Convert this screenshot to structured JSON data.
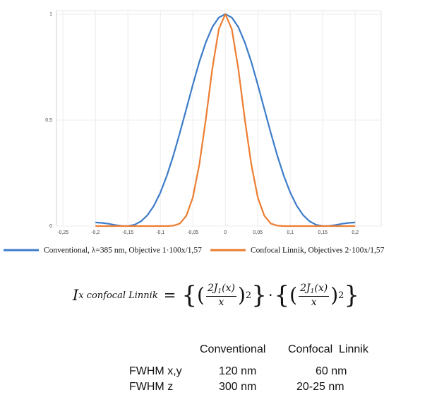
{
  "chart_data": {
    "type": "line",
    "x": [
      -0.2,
      -0.19,
      -0.18,
      -0.17,
      -0.16,
      -0.15,
      -0.14,
      -0.13,
      -0.12,
      -0.11,
      -0.1,
      -0.09,
      -0.08,
      -0.07,
      -0.06,
      -0.05,
      -0.04,
      -0.03,
      -0.02,
      -0.01,
      0,
      0.01,
      0.02,
      0.03,
      0.04,
      0.05,
      0.06,
      0.07,
      0.08,
      0.09,
      0.1,
      0.11,
      0.12,
      0.13,
      0.14,
      0.15,
      0.16,
      0.17,
      0.18,
      0.19,
      0.2
    ],
    "series": [
      {
        "name": "Conventional, λ=385 nm, Objective 1·100x/1,57",
        "color": "#3d7cc9",
        "values": [
          0.017,
          0.015,
          0.011,
          0.005,
          0.001,
          0,
          0.006,
          0.022,
          0.051,
          0.096,
          0.158,
          0.238,
          0.333,
          0.44,
          0.553,
          0.667,
          0.775,
          0.867,
          0.939,
          0.984,
          1,
          0.984,
          0.939,
          0.867,
          0.775,
          0.667,
          0.553,
          0.44,
          0.333,
          0.238,
          0.158,
          0.096,
          0.051,
          0.022,
          0.006,
          0,
          0.001,
          0.005,
          0.011,
          0.015,
          0.017
        ]
      },
      {
        "name": "Confocal Linnik, Objectives 2·100x/1,57",
        "color": "#ed7d31",
        "values": [
          0,
          0,
          0,
          0,
          0,
          0,
          0,
          0,
          0,
          0,
          0,
          0,
          0.002,
          0.012,
          0.049,
          0.135,
          0.291,
          0.504,
          0.743,
          0.929,
          1,
          0.929,
          0.743,
          0.504,
          0.291,
          0.135,
          0.049,
          0.012,
          0.002,
          0,
          0,
          0,
          0,
          0,
          0,
          0,
          0,
          0,
          0,
          0,
          0
        ]
      }
    ],
    "xlim": [
      -0.26,
      0.24
    ],
    "ylim": [
      0,
      1
    ],
    "xticks": [
      {
        "value": -0.25,
        "label": "-0,25"
      },
      {
        "value": -0.2,
        "label": "-0,2"
      },
      {
        "value": -0.15,
        "label": "-0,15"
      },
      {
        "value": -0.1,
        "label": "-0,1"
      },
      {
        "value": -0.05,
        "label": "-0,05"
      },
      0,
      {
        "value": 0.05,
        "label": "0,05"
      },
      {
        "value": 0.1,
        "label": "0,1"
      },
      {
        "value": 0.15,
        "label": "0,15"
      },
      {
        "value": 0.2,
        "label": "0,2"
      }
    ],
    "yticks": [
      0,
      {
        "value": 0.5,
        "label": "0,5"
      },
      1
    ],
    "grid": true,
    "legend": "bottom"
  },
  "formula": {
    "lhs": "I",
    "lhs_sub": "x confocal Linnik",
    "equals": "=",
    "open_brace": "{",
    "close_brace": "}",
    "open_paren": "(",
    "close_paren": ")",
    "numerator": "2J",
    "numerator_sub": "1",
    "numerator_arg": "(x)",
    "denominator": "x",
    "exponent": "2",
    "dot": "·"
  },
  "table": {
    "columns": [
      "Conventional",
      "Confocal  Linnik"
    ],
    "rows": [
      [
        "FWHM x,y",
        "120 nm",
        "60 nm"
      ],
      [
        "FWHM z",
        "300 nm",
        "20-25 nm"
      ]
    ]
  }
}
